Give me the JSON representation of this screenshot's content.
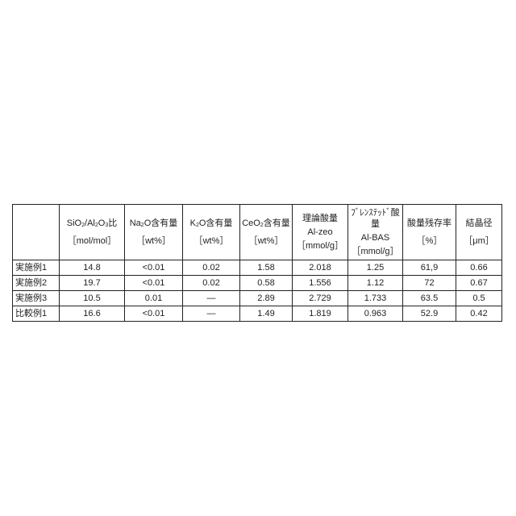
{
  "table": {
    "headers": [
      {
        "line1": [],
        "line2": "",
        "unit": ""
      },
      {
        "line1": [
          {
            "t": "SiO"
          },
          {
            "t": "2",
            "sub": true
          },
          {
            "t": "/Al"
          },
          {
            "t": "2",
            "sub": true
          },
          {
            "t": "O"
          },
          {
            "t": "3",
            "sub": true
          },
          {
            "t": "比"
          }
        ],
        "line2": "",
        "unit": "［mol/mol］"
      },
      {
        "line1": [
          {
            "t": "Na"
          },
          {
            "t": "2",
            "sub": true
          },
          {
            "t": "O含有量"
          }
        ],
        "line2": "",
        "unit": "［wt%］"
      },
      {
        "line1": [
          {
            "t": "K"
          },
          {
            "t": "2",
            "sub": true
          },
          {
            "t": "O含有量"
          }
        ],
        "line2": "",
        "unit": "［wt%］"
      },
      {
        "line1": [
          {
            "t": "CeO"
          },
          {
            "t": "2",
            "sub": true
          },
          {
            "t": "含有量"
          }
        ],
        "line2": "",
        "unit": "［wt%］"
      },
      {
        "line1": [
          {
            "t": "理論酸量"
          }
        ],
        "line2": "Al-zeo",
        "unit": "［mmol/g］"
      },
      {
        "line1": [
          {
            "t": "ﾌﾞﾚﾝｽﾃｯﾄﾞ酸量"
          }
        ],
        "line2": "Al-BAS",
        "unit": "［mmol/g］"
      },
      {
        "line1": [
          {
            "t": "酸量残存率"
          }
        ],
        "line2": "",
        "unit": "［%］"
      },
      {
        "line1": [
          {
            "t": "結晶径"
          }
        ],
        "line2": "",
        "unit": "［μm］"
      }
    ],
    "rows": [
      [
        "実施例1",
        "14.8",
        "<0.01",
        "0.02",
        "1.58",
        "2.018",
        "1.25",
        "61,9",
        "0.66"
      ],
      [
        "実施例2",
        "19.7",
        "<0.01",
        "0.02",
        "0.58",
        "1.556",
        "1.12",
        "72",
        "0.67"
      ],
      [
        "実施例3",
        "10.5",
        "0.01",
        "—",
        "2.89",
        "2.729",
        "1.733",
        "63.5",
        "0.5"
      ],
      [
        "比較例1",
        "16.6",
        "<0.01",
        "—",
        "1.49",
        "1.819",
        "0.963",
        "52.9",
        "0.42"
      ]
    ]
  }
}
